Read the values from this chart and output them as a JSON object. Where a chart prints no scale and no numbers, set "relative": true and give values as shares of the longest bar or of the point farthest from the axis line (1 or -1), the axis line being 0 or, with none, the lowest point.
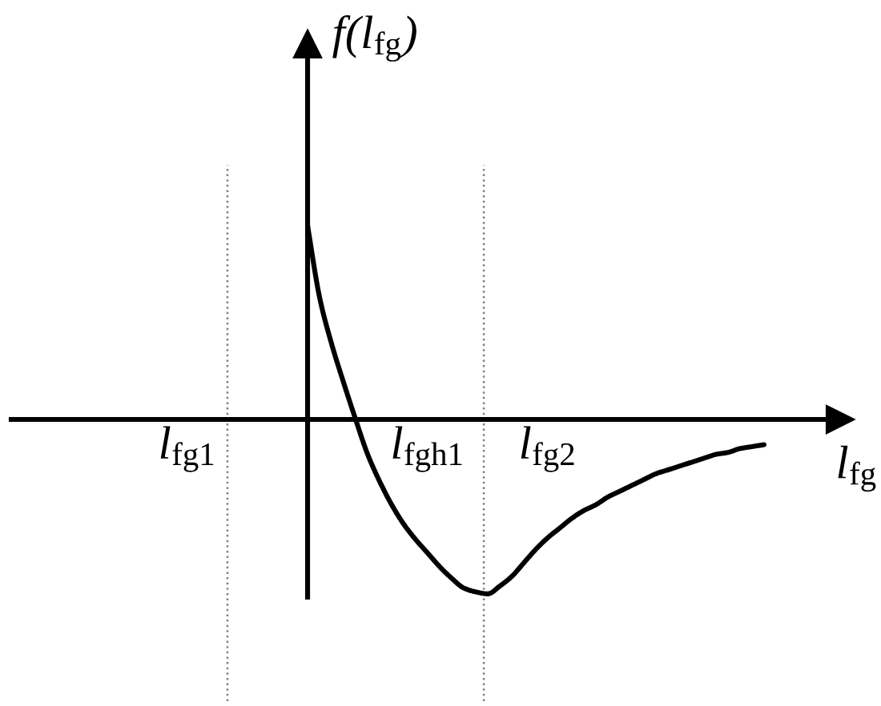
{
  "chart_data": {
    "type": "line",
    "xlabel": "l$_{fg}$",
    "annotations": [
      "f(l$_{fg}$)"
    ],
    "relative": true,
    "categories": [
      "l$_{fg1}$",
      null,
      null,
      null,
      null,
      null,
      null,
      null,
      null,
      null,
      null,
      null,
      null,
      null,
      null,
      null,
      null,
      null,
      null,
      null,
      "l$_{fgh1}$",
      null,
      null,
      null,
      null,
      null,
      null,
      null,
      null,
      null,
      "l$_{fg2}$",
      null,
      null,
      null,
      null,
      null,
      null,
      null,
      null,
      null,
      null,
      null,
      null,
      null,
      null,
      null,
      null,
      null,
      null
    ],
    "series": [
      {
        "color": "#000000",
        "values": [
          null,
          null,
          null,
          null,
          null,
          null,
          null,
          null,
          null,
          null,
          1.0,
          0.63,
          0.39,
          0.19,
          0.0,
          -0.18,
          -0.32,
          -0.44,
          -0.54,
          -0.62,
          -0.69,
          -0.76,
          -0.82,
          -0.87,
          -0.89,
          -0.9,
          -0.86,
          -0.81,
          -0.74,
          -0.67,
          -0.61,
          -0.56,
          -0.51,
          -0.47,
          -0.44,
          -0.4,
          -0.37,
          -0.34,
          -0.31,
          -0.28,
          -0.26,
          -0.24,
          -0.22,
          -0.2,
          -0.18,
          -0.17,
          -0.15,
          -0.14,
          -0.13
        ]
      }
    ]
  }
}
